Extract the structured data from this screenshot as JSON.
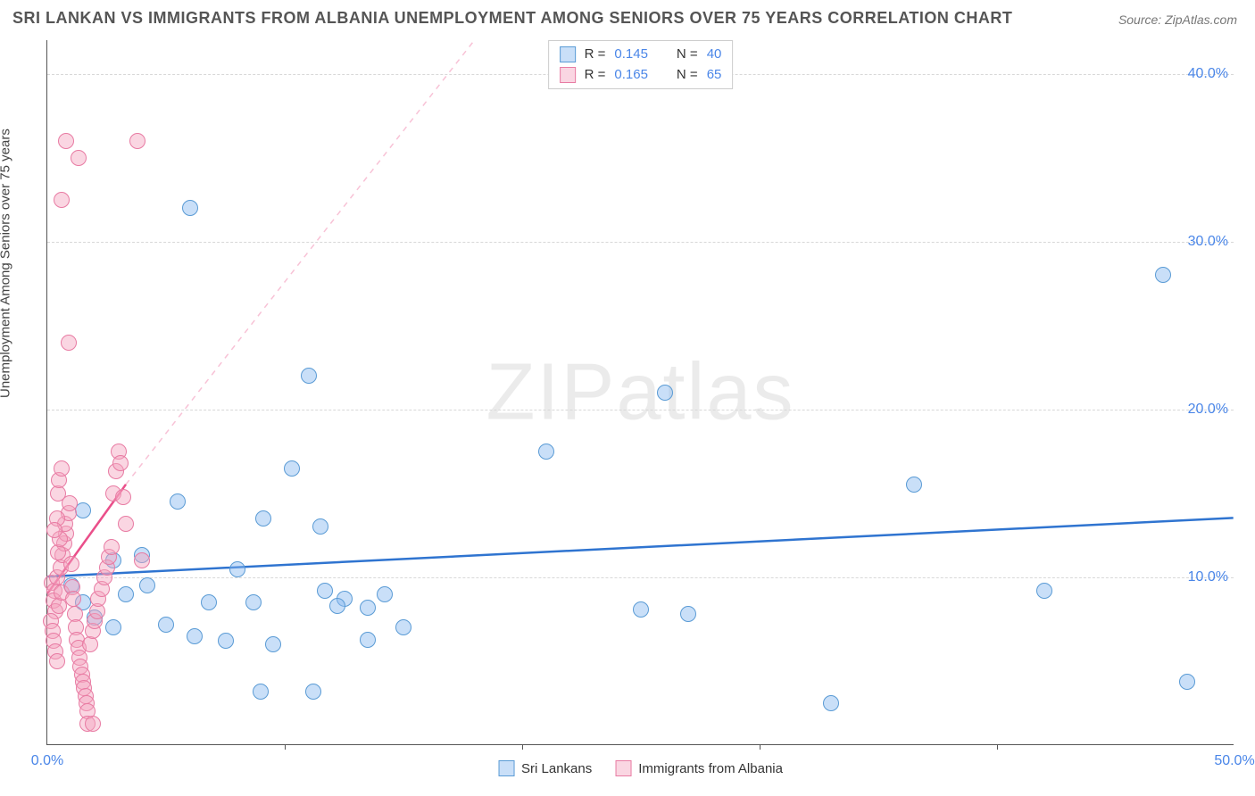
{
  "title": "SRI LANKAN VS IMMIGRANTS FROM ALBANIA UNEMPLOYMENT AMONG SENIORS OVER 75 YEARS CORRELATION CHART",
  "source": "Source: ZipAtlas.com",
  "y_axis_label": "Unemployment Among Seniors over 75 years",
  "watermark": "ZIPatlas",
  "chart": {
    "type": "scatter",
    "background_color": "#ffffff",
    "grid_color": "#d8d8d8",
    "axis_color": "#555555",
    "text_color": "#444444",
    "tick_text_color": "#4a86e8",
    "xlim": [
      0,
      50
    ],
    "ylim": [
      0,
      42
    ],
    "x_ticks": [
      0,
      10,
      20,
      30,
      40,
      50
    ],
    "y_ticks": [
      10,
      20,
      30,
      40
    ],
    "x_tick_labels": {
      "0": "0.0%",
      "50": "50.0%"
    },
    "y_tick_labels": {
      "10": "10.0%",
      "20": "20.0%",
      "30": "30.0%",
      "40": "40.0%"
    },
    "point_radius": 9,
    "point_border_width": 1.5,
    "series": [
      {
        "name": "Sri Lankans",
        "fill": "rgba(135,185,240,0.45)",
        "stroke": "#5a9bd5",
        "r_value": "0.145",
        "n_value": "40",
        "trend": {
          "from": [
            0,
            10.0
          ],
          "to": [
            50,
            13.5
          ],
          "color": "#2f74d0",
          "width": 2.5,
          "dash": ""
        },
        "points": [
          [
            6.0,
            32.0
          ],
          [
            47.0,
            28.0
          ],
          [
            1.5,
            14.0
          ],
          [
            2.8,
            11.0
          ],
          [
            4.2,
            9.5
          ],
          [
            5.5,
            14.5
          ],
          [
            6.8,
            8.5
          ],
          [
            8.7,
            8.5
          ],
          [
            9.1,
            13.5
          ],
          [
            10.3,
            16.5
          ],
          [
            11.0,
            22.0
          ],
          [
            11.5,
            13.0
          ],
          [
            12.5,
            8.7
          ],
          [
            15.0,
            7.0
          ],
          [
            13.5,
            6.3
          ],
          [
            9.0,
            3.2
          ],
          [
            11.2,
            3.2
          ],
          [
            14.2,
            9.0
          ],
          [
            26.0,
            21.0
          ],
          [
            21.0,
            17.5
          ],
          [
            25.0,
            8.1
          ],
          [
            27.0,
            7.8
          ],
          [
            33.0,
            2.5
          ],
          [
            36.5,
            15.5
          ],
          [
            42.0,
            9.2
          ],
          [
            48.0,
            3.8
          ],
          [
            1.0,
            9.5
          ],
          [
            1.5,
            8.5
          ],
          [
            2.0,
            7.6
          ],
          [
            2.8,
            7.0
          ],
          [
            3.3,
            9.0
          ],
          [
            4.0,
            11.3
          ],
          [
            5.0,
            7.2
          ],
          [
            6.2,
            6.5
          ],
          [
            7.5,
            6.2
          ],
          [
            8.0,
            10.5
          ],
          [
            9.5,
            6.0
          ],
          [
            11.7,
            9.2
          ],
          [
            12.2,
            8.3
          ],
          [
            13.5,
            8.2
          ]
        ]
      },
      {
        "name": "Immigrants from Albania",
        "fill": "rgba(245,165,190,0.45)",
        "stroke": "#e87ba3",
        "r_value": "0.165",
        "n_value": "65",
        "trend": {
          "from": [
            0,
            9.0
          ],
          "to": [
            3.3,
            15.5
          ],
          "color": "#ea4f8a",
          "width": 2.5,
          "dash": ""
        },
        "trend_ext": {
          "from": [
            3.3,
            15.5
          ],
          "to": [
            18,
            42
          ],
          "color": "rgba(234,79,138,0.35)",
          "width": 1.5,
          "dash": "6 6"
        },
        "points": [
          [
            0.2,
            9.7
          ],
          [
            0.3,
            9.2
          ],
          [
            0.4,
            10.0
          ],
          [
            0.25,
            8.6
          ],
          [
            0.35,
            8.0
          ],
          [
            0.5,
            8.3
          ],
          [
            0.6,
            9.1
          ],
          [
            0.55,
            10.6
          ],
          [
            0.65,
            11.3
          ],
          [
            0.7,
            12.0
          ],
          [
            0.8,
            12.6
          ],
          [
            0.75,
            13.2
          ],
          [
            0.9,
            13.8
          ],
          [
            0.95,
            14.4
          ],
          [
            1.0,
            10.8
          ],
          [
            1.05,
            9.4
          ],
          [
            1.1,
            8.7
          ],
          [
            1.15,
            7.8
          ],
          [
            1.2,
            7.0
          ],
          [
            1.25,
            6.3
          ],
          [
            1.3,
            5.8
          ],
          [
            1.35,
            5.2
          ],
          [
            1.4,
            4.7
          ],
          [
            1.45,
            4.2
          ],
          [
            1.5,
            3.8
          ],
          [
            1.55,
            3.4
          ],
          [
            1.6,
            2.9
          ],
          [
            1.65,
            2.5
          ],
          [
            1.7,
            2.0
          ],
          [
            1.8,
            6.0
          ],
          [
            1.9,
            6.8
          ],
          [
            2.0,
            7.4
          ],
          [
            2.1,
            8.0
          ],
          [
            2.15,
            8.7
          ],
          [
            2.3,
            9.3
          ],
          [
            2.4,
            10.0
          ],
          [
            2.5,
            10.6
          ],
          [
            2.6,
            11.2
          ],
          [
            2.7,
            11.8
          ],
          [
            2.8,
            15.0
          ],
          [
            2.9,
            16.3
          ],
          [
            3.0,
            17.5
          ],
          [
            3.1,
            16.8
          ],
          [
            3.2,
            14.8
          ],
          [
            3.3,
            13.2
          ],
          [
            0.6,
            32.5
          ],
          [
            1.3,
            35.0
          ],
          [
            0.8,
            36.0
          ],
          [
            3.8,
            36.0
          ],
          [
            4.0,
            11.0
          ],
          [
            0.9,
            24.0
          ],
          [
            0.15,
            7.4
          ],
          [
            0.22,
            6.8
          ],
          [
            0.28,
            6.2
          ],
          [
            0.34,
            5.6
          ],
          [
            0.4,
            5.0
          ],
          [
            0.46,
            11.5
          ],
          [
            0.52,
            12.3
          ],
          [
            0.4,
            13.5
          ],
          [
            0.3,
            12.8
          ],
          [
            0.45,
            15.0
          ],
          [
            0.5,
            15.8
          ],
          [
            0.6,
            16.5
          ],
          [
            1.7,
            1.3
          ],
          [
            1.9,
            1.3
          ]
        ]
      }
    ]
  }
}
